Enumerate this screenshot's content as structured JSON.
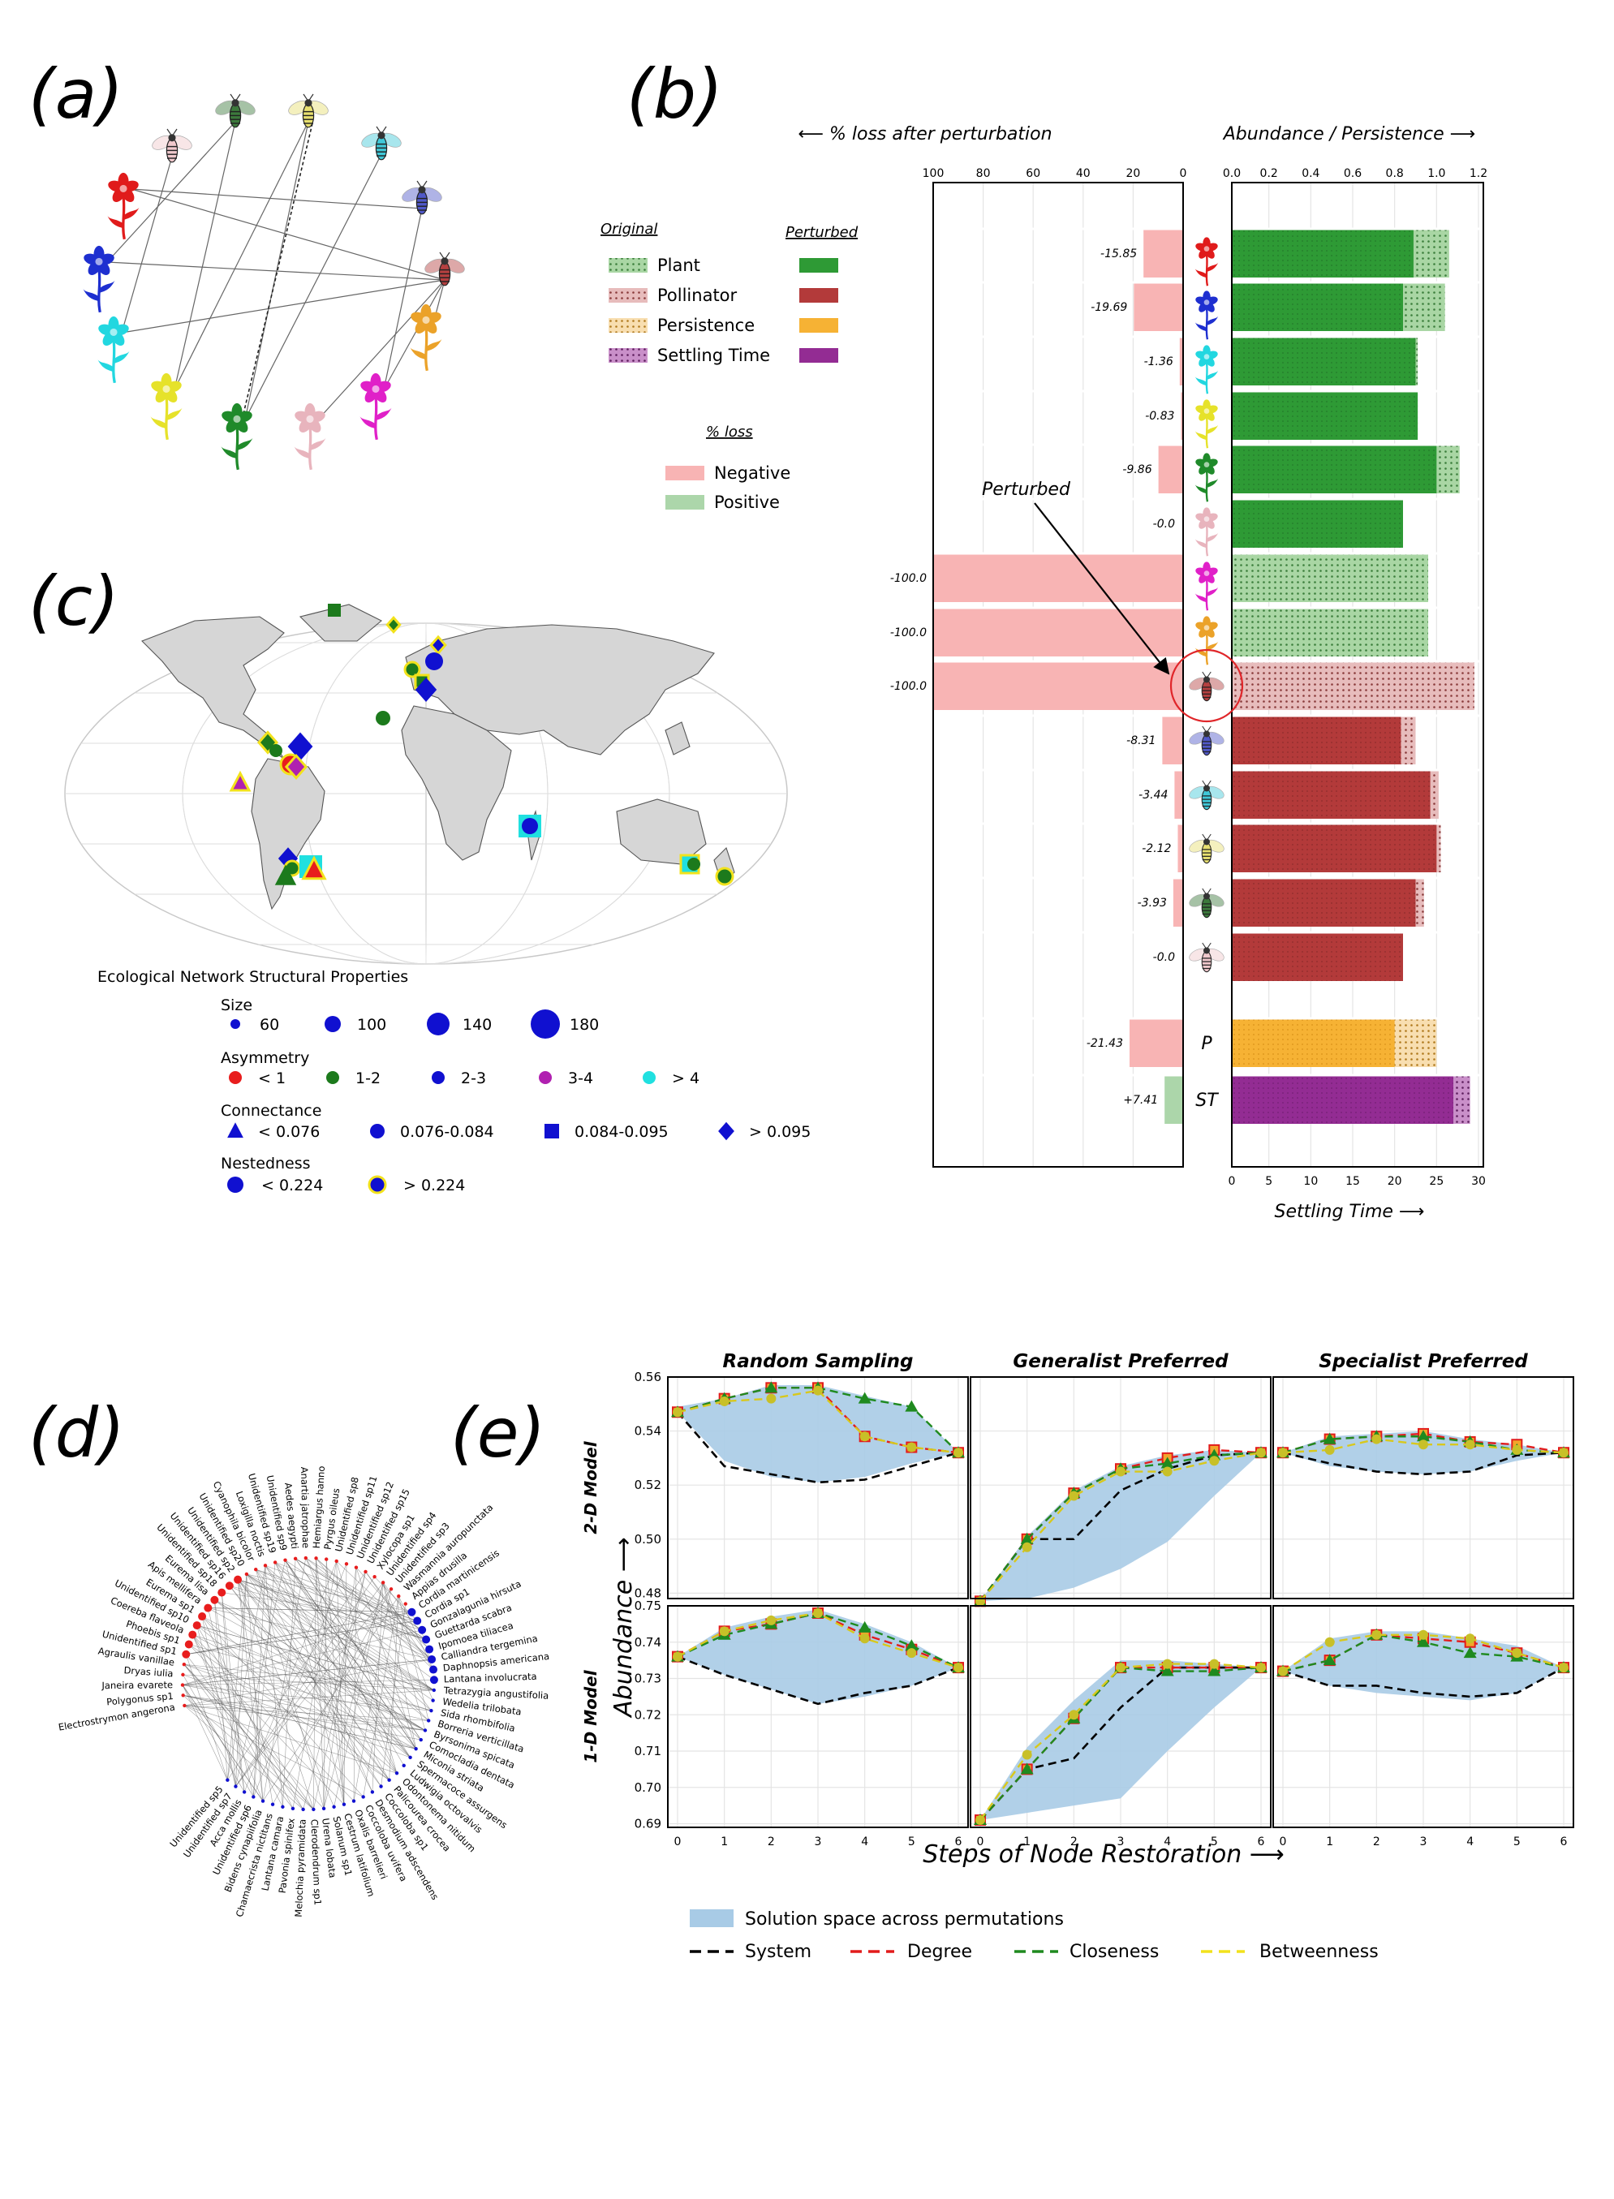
{
  "panel_labels": [
    "(a)",
    "(b)",
    "(c)",
    "(d)",
    "(e)"
  ],
  "colors": {
    "plant": "#2e9a35",
    "plant_light": "#a9d6a4",
    "pollinator": "#b33a3a",
    "pollinator_light": "#e7bcbc",
    "persistence": "#f6b234",
    "persistence_light": "#f8deb0",
    "settling": "#932c93",
    "settling_light": "#c98fc9",
    "loss_negative": "#f8b4b4",
    "loss_positive": "#acd6aa",
    "ocean": "#ffffff",
    "land": "#d6d6d6",
    "shade": "#a8cbe6"
  },
  "panel_a": {
    "plants": [
      "red",
      "blue",
      "cyan",
      "yellow",
      "green",
      "pink",
      "magenta",
      "orange"
    ],
    "pollinators": [
      "pink",
      "green",
      "yellow",
      "cyan",
      "blue",
      "red"
    ],
    "icons": [
      "flower-icon",
      "bee-icon"
    ]
  },
  "panel_b": {
    "legend": {
      "original_header": "Original",
      "perturbed_header": "Perturbed",
      "items": [
        "Plant",
        "Pollinator",
        "Persistence",
        "Settling Time"
      ],
      "loss_header": "% loss",
      "loss_items": [
        "Negative",
        "Positive"
      ]
    },
    "annotation": "Perturbed",
    "chart_data": {
      "type": "bar",
      "left_axis_title": "⟵  % loss after perturbation",
      "right_axis_title": "Abundance / Persistence  ⟶",
      "bottom_axis_title": "Settling Time  ⟶",
      "left_xlim": [
        100,
        0
      ],
      "left_ticks": [
        "100",
        "80",
        "60",
        "40",
        "20",
        "0"
      ],
      "right_xlim": [
        0,
        1.2
      ],
      "right_ticks": [
        "0.0",
        "0.2",
        "0.4",
        "0.6",
        "0.8",
        "1.0",
        "1.2"
      ],
      "bottom_xlim": [
        0,
        30
      ],
      "bottom_ticks": [
        "0",
        "5",
        "10",
        "15",
        "20",
        "25",
        "30"
      ],
      "rows": [
        {
          "kind": "plant",
          "icon": "flower-icon",
          "loss_label": "-15.85",
          "loss": 15.85,
          "original": 1.06,
          "perturbed": 0.89
        },
        {
          "kind": "plant",
          "icon": "flower-icon",
          "loss_label": "-19.69",
          "loss": 19.69,
          "original": 1.04,
          "perturbed": 0.84
        },
        {
          "kind": "plant",
          "icon": "flower-icon",
          "loss_label": "-1.36",
          "loss": 1.36,
          "original": 0.91,
          "perturbed": 0.9
        },
        {
          "kind": "plant",
          "icon": "flower-icon",
          "loss_label": "-0.83",
          "loss": 0.83,
          "original": 0.91,
          "perturbed": 0.91
        },
        {
          "kind": "plant",
          "icon": "flower-icon",
          "loss_label": "-9.86",
          "loss": 9.86,
          "original": 1.11,
          "perturbed": 1.0
        },
        {
          "kind": "plant",
          "icon": "flower-icon",
          "loss_label": "-0.0",
          "loss": 0.0,
          "original": 0.84,
          "perturbed": 0.84
        },
        {
          "kind": "plant",
          "icon": "flower-icon",
          "loss_label": "-100.0",
          "loss": 100.0,
          "original": 0.96,
          "perturbed": 0.0
        },
        {
          "kind": "plant",
          "icon": "flower-icon",
          "loss_label": "-100.0",
          "loss": 100.0,
          "original": 0.96,
          "perturbed": 0.0
        },
        {
          "kind": "pollinator",
          "icon": "bee-icon",
          "loss_label": "-100.0",
          "loss": 100.0,
          "original": 1.18,
          "perturbed": 0.0
        },
        {
          "kind": "pollinator",
          "icon": "bee-icon",
          "loss_label": "-8.31",
          "loss": 8.31,
          "original": 0.9,
          "perturbed": 0.83
        },
        {
          "kind": "pollinator",
          "icon": "bee-icon",
          "loss_label": "-3.44",
          "loss": 3.44,
          "original": 1.01,
          "perturbed": 0.97
        },
        {
          "kind": "pollinator",
          "icon": "bee-icon",
          "loss_label": "-2.12",
          "loss": 2.12,
          "original": 1.02,
          "perturbed": 1.0
        },
        {
          "kind": "pollinator",
          "icon": "bee-icon",
          "loss_label": "-3.93",
          "loss": 3.93,
          "original": 0.94,
          "perturbed": 0.9
        },
        {
          "kind": "pollinator",
          "icon": "bee-icon",
          "loss_label": "-0.0",
          "loss": 0.0,
          "original": 0.84,
          "perturbed": 0.84
        },
        {
          "kind": "persistence",
          "label": "P",
          "loss_label": "-21.43",
          "loss": 21.43,
          "original": 1.0,
          "perturbed": 0.8
        },
        {
          "kind": "settling",
          "label": "ST",
          "loss_label": "+7.41",
          "loss": 7.41,
          "positive": true,
          "original_st": 27.0,
          "perturbed_st": 29.0
        }
      ]
    }
  },
  "panel_c": {
    "title": "Ecological Network Structural Properties",
    "size_header": "Size",
    "size_items": [
      "60",
      "100",
      "140",
      "180"
    ],
    "asym_header": "Asymmetry",
    "asym_items": [
      "< 1",
      "1-2",
      "2-3",
      "3-4",
      "> 4"
    ],
    "conn_header": "Connectance",
    "conn_items": [
      "< 0.076",
      "0.076-0.084",
      "0.084-0.095",
      "> 0.095"
    ],
    "nest_header": "Nestedness",
    "nest_items": [
      "< 0.224",
      "> 0.224"
    ],
    "icons": [
      "globe-map-icon"
    ]
  },
  "panel_d": {
    "labels": [
      "Electrostrymon angerona",
      "Polygonus sp1",
      "Janeira evarete",
      "Dryas iulia",
      "Agraulis vanillae",
      "Unidentified sp1",
      "Phoebis sp1",
      "Coereba flaveola",
      "Unidentified sp10",
      "Eurema sp1",
      "Apis mellifera",
      "Eurema lisa",
      "Unidentified sp18",
      "Unidentified sp16",
      "Unidentified sp2",
      "Unidentified sp20",
      "Cyanophila bicolor",
      "Loxigilla noctis",
      "Unidentified sp19",
      "Unidentified sp9",
      "Aedes aegypti",
      "Anartia jatrophae",
      "Hemiargus hanno",
      "Pyrgus oileus",
      "Unidentified sp8",
      "Unidentified sp11",
      "Unidentified sp12",
      "Unidentified sp15",
      "Xylocopa sp1",
      "Unidentified sp4",
      "Unidentified sp3",
      "Wasmannia auropunctata",
      "Appias drusilla",
      "Cordia martinicensis",
      "Cordia sp1",
      "Gonzalagunia hirsuta",
      "Guettarda scabra",
      "Ipomoea tiliacea",
      "Calliandra tergemina",
      "Daphnopsis americana",
      "Lantana involucrata",
      "Tetrazygia angustifolia",
      "Wedelia trilobata",
      "Sida rhombifolia",
      "Borreria verticillata",
      "Byrsonima spicata",
      "Comocladia dentata",
      "Miconia striata",
      "Spermacoce assurgens",
      "Ludwigia octovalvis",
      "Odontonema nitidum",
      "Palicourea crocea",
      "Coccoloba sp1",
      "Desmodium adscendens",
      "Coccoloba uvifera",
      "Oxalis barrelieri",
      "Cestrum latifolium",
      "Solanum sp1",
      "Urena lobata",
      "Clerodendrum sp1",
      "Melochia pyramidata",
      "Pavonia spinifex",
      "Lantana camara",
      "Chamaecrista nictitans",
      "Bidens cynapiifolia",
      "Unidentified sp6",
      "Acca mollis",
      "Unidentified sp7",
      "Unidentified sp5"
    ]
  },
  "panel_e": {
    "columns": [
      "Random Sampling",
      "Generalist Preferred",
      "Specialist Preferred"
    ],
    "rows": [
      "2-D Model",
      "1-D Model"
    ],
    "ylabel": "Abundance  ⟶",
    "xlabel": "Steps of Node Restoration  ⟶",
    "legend": {
      "shade": "Solution space across permutations",
      "lines": [
        "System",
        "Degree",
        "Closeness",
        "Betweenness"
      ]
    },
    "chart_data": [
      {
        "type": "line",
        "row": "2-D Model",
        "column": "Random Sampling",
        "x": [
          0,
          1,
          2,
          3,
          4,
          5,
          6
        ],
        "ylim": [
          0.478,
          0.56
        ],
        "yticks": [
          "0.48",
          "0.50",
          "0.52",
          "0.54",
          "0.56"
        ],
        "band_low": [
          0.547,
          0.529,
          0.523,
          0.521,
          0.523,
          0.528,
          0.532
        ],
        "band_high": [
          0.549,
          0.552,
          0.557,
          0.557,
          0.553,
          0.549,
          0.532
        ],
        "series": [
          {
            "name": "System",
            "values": [
              0.547,
              0.527,
              0.524,
              0.521,
              0.522,
              0.527,
              0.532
            ]
          },
          {
            "name": "Degree",
            "values": [
              0.547,
              0.552,
              0.556,
              0.556,
              0.538,
              0.534,
              0.532
            ]
          },
          {
            "name": "Closeness",
            "values": [
              0.547,
              0.552,
              0.556,
              0.556,
              0.552,
              0.549,
              0.532
            ]
          },
          {
            "name": "Betweenness",
            "values": [
              0.547,
              0.551,
              0.552,
              0.555,
              0.538,
              0.534,
              0.532
            ]
          }
        ]
      },
      {
        "type": "line",
        "row": "2-D Model",
        "column": "Generalist Preferred",
        "x": [
          0,
          1,
          2,
          3,
          4,
          5,
          6
        ],
        "ylim": [
          0.478,
          0.56
        ],
        "band_low": [
          0.477,
          0.478,
          0.482,
          0.489,
          0.499,
          0.516,
          0.532
        ],
        "band_high": [
          0.477,
          0.501,
          0.518,
          0.527,
          0.531,
          0.533,
          0.532
        ],
        "series": [
          {
            "name": "System",
            "values": [
              0.477,
              0.5,
              0.5,
              0.518,
              0.526,
              0.531,
              0.532
            ]
          },
          {
            "name": "Degree",
            "values": [
              0.477,
              0.5,
              0.517,
              0.526,
              0.53,
              0.533,
              0.532
            ]
          },
          {
            "name": "Closeness",
            "values": [
              0.477,
              0.5,
              0.517,
              0.526,
              0.528,
              0.531,
              0.532
            ]
          },
          {
            "name": "Betweenness",
            "values": [
              0.477,
              0.497,
              0.516,
              0.525,
              0.525,
              0.529,
              0.532
            ]
          }
        ]
      },
      {
        "type": "line",
        "row": "2-D Model",
        "column": "Specialist Preferred",
        "x": [
          0,
          1,
          2,
          3,
          4,
          5,
          6
        ],
        "ylim": [
          0.478,
          0.56
        ],
        "band_low": [
          0.532,
          0.527,
          0.525,
          0.524,
          0.525,
          0.529,
          0.532
        ],
        "band_high": [
          0.532,
          0.538,
          0.539,
          0.54,
          0.537,
          0.535,
          0.532
        ],
        "series": [
          {
            "name": "System",
            "values": [
              0.532,
              0.528,
              0.525,
              0.524,
              0.525,
              0.531,
              0.532
            ]
          },
          {
            "name": "Degree",
            "values": [
              0.532,
              0.537,
              0.538,
              0.539,
              0.536,
              0.535,
              0.532
            ]
          },
          {
            "name": "Closeness",
            "values": [
              0.532,
              0.537,
              0.538,
              0.538,
              0.536,
              0.533,
              0.532
            ]
          },
          {
            "name": "Betweenness",
            "values": [
              0.532,
              0.533,
              0.537,
              0.535,
              0.535,
              0.533,
              0.532
            ]
          }
        ]
      },
      {
        "type": "line",
        "row": "1-D Model",
        "column": "Random Sampling",
        "x": [
          0,
          1,
          2,
          3,
          4,
          5,
          6
        ],
        "ylim": [
          0.689,
          0.75
        ],
        "yticks": [
          "0.69",
          "0.70",
          "0.71",
          "0.72",
          "0.73",
          "0.74",
          "0.75"
        ],
        "band_low": [
          0.736,
          0.731,
          0.727,
          0.723,
          0.725,
          0.728,
          0.733
        ],
        "band_high": [
          0.736,
          0.744,
          0.747,
          0.749,
          0.745,
          0.74,
          0.733
        ],
        "series": [
          {
            "name": "System",
            "values": [
              0.736,
              0.731,
              0.727,
              0.723,
              0.726,
              0.728,
              0.733
            ]
          },
          {
            "name": "Degree",
            "values": [
              0.736,
              0.743,
              0.745,
              0.748,
              0.742,
              0.738,
              0.733
            ]
          },
          {
            "name": "Closeness",
            "values": [
              0.736,
              0.742,
              0.745,
              0.748,
              0.744,
              0.739,
              0.733
            ]
          },
          {
            "name": "Betweenness",
            "values": [
              0.736,
              0.743,
              0.746,
              0.748,
              0.741,
              0.737,
              0.733
            ]
          }
        ]
      },
      {
        "type": "line",
        "row": "1-D Model",
        "column": "Generalist Preferred",
        "x": [
          0,
          1,
          2,
          3,
          4,
          5,
          6
        ],
        "ylim": [
          0.689,
          0.75
        ],
        "band_low": [
          0.691,
          0.693,
          0.695,
          0.697,
          0.71,
          0.722,
          0.733
        ],
        "band_high": [
          0.691,
          0.711,
          0.724,
          0.735,
          0.735,
          0.734,
          0.733
        ],
        "series": [
          {
            "name": "System",
            "values": [
              0.691,
              0.705,
              0.708,
              0.722,
              0.733,
              0.733,
              0.733
            ]
          },
          {
            "name": "Degree",
            "values": [
              0.691,
              0.705,
              0.719,
              0.733,
              0.733,
              0.733,
              0.733
            ]
          },
          {
            "name": "Closeness",
            "values": [
              0.691,
              0.705,
              0.719,
              0.733,
              0.732,
              0.732,
              0.733
            ]
          },
          {
            "name": "Betweenness",
            "values": [
              0.691,
              0.709,
              0.72,
              0.733,
              0.734,
              0.734,
              0.733
            ]
          }
        ]
      },
      {
        "type": "line",
        "row": "1-D Model",
        "column": "Specialist Preferred",
        "x": [
          0,
          1,
          2,
          3,
          4,
          5,
          6
        ],
        "ylim": [
          0.689,
          0.75
        ],
        "band_low": [
          0.732,
          0.728,
          0.726,
          0.725,
          0.724,
          0.726,
          0.733
        ],
        "band_high": [
          0.732,
          0.741,
          0.743,
          0.743,
          0.741,
          0.739,
          0.733
        ],
        "series": [
          {
            "name": "System",
            "values": [
              0.732,
              0.728,
              0.728,
              0.726,
              0.725,
              0.726,
              0.733
            ]
          },
          {
            "name": "Degree",
            "values": [
              0.732,
              0.735,
              0.742,
              0.741,
              0.74,
              0.737,
              0.733
            ]
          },
          {
            "name": "Closeness",
            "values": [
              0.732,
              0.735,
              0.742,
              0.74,
              0.737,
              0.736,
              0.733
            ]
          },
          {
            "name": "Betweenness",
            "values": [
              0.732,
              0.74,
              0.742,
              0.742,
              0.741,
              0.737,
              0.733
            ]
          }
        ]
      }
    ]
  }
}
